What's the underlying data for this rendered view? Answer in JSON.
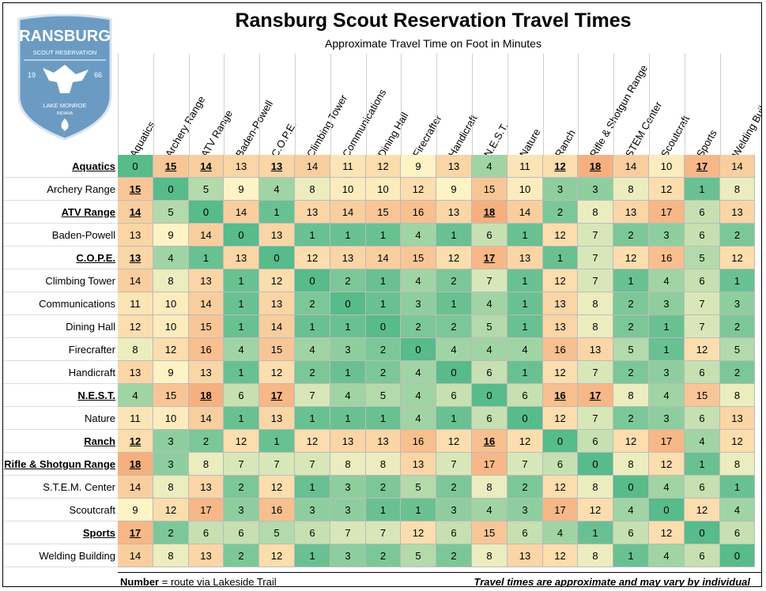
{
  "logo": {
    "name": "RANSBURG",
    "sub": "SCOUT RESERVATION",
    "year_left": "19",
    "year_right": "66",
    "place": "LAKE MONROE",
    "state": "INDIANA"
  },
  "title": "Ransburg Scout Reservation Travel Times",
  "subtitle": "Approximate Travel Time on Foot in Minutes",
  "columns": [
    "Aquatics",
    "Archery Range",
    "ATV Range",
    "Baden-Powell",
    "C.O.P.E.",
    "Climbing Tower",
    "Communications",
    "Dining Hall",
    "Firecrafter",
    "Handicraft",
    "N.E.S.T.",
    "Nature",
    "Ranch",
    "Rifle & Shotgun Range",
    "STEM Center",
    "Scoutcraft",
    "Sports",
    "Welding Building"
  ],
  "rows": [
    {
      "label": "Aquatics",
      "values": [
        0,
        15,
        14,
        13,
        13,
        14,
        11,
        12,
        9,
        13,
        4,
        11,
        12,
        18,
        14,
        10,
        17,
        14
      ]
    },
    {
      "label": "Archery Range",
      "values": [
        15,
        0,
        5,
        9,
        4,
        8,
        10,
        10,
        12,
        9,
        15,
        10,
        3,
        3,
        8,
        12,
        1,
        8
      ]
    },
    {
      "label": "ATV Range",
      "values": [
        14,
        5,
        0,
        14,
        1,
        13,
        14,
        15,
        16,
        13,
        18,
        14,
        2,
        8,
        13,
        17,
        6,
        13
      ]
    },
    {
      "label": "Baden-Powell",
      "values": [
        13,
        9,
        14,
        0,
        13,
        1,
        1,
        1,
        4,
        1,
        6,
        1,
        12,
        7,
        2,
        3,
        6,
        2
      ]
    },
    {
      "label": "C.O.P.E.",
      "values": [
        13,
        4,
        1,
        13,
        0,
        12,
        13,
        14,
        15,
        12,
        17,
        13,
        1,
        7,
        12,
        16,
        5,
        12
      ]
    },
    {
      "label": "Climbing Tower",
      "values": [
        14,
        8,
        13,
        1,
        12,
        0,
        2,
        1,
        4,
        2,
        7,
        1,
        12,
        7,
        1,
        4,
        6,
        1
      ]
    },
    {
      "label": "Communications",
      "values": [
        11,
        10,
        14,
        1,
        13,
        2,
        0,
        1,
        3,
        1,
        4,
        1,
        13,
        8,
        2,
        3,
        7,
        3
      ]
    },
    {
      "label": "Dining Hall",
      "values": [
        12,
        10,
        15,
        1,
        14,
        1,
        1,
        0,
        2,
        2,
        5,
        1,
        13,
        8,
        2,
        1,
        7,
        2
      ]
    },
    {
      "label": "Firecrafter",
      "values": [
        8,
        12,
        16,
        4,
        15,
        4,
        3,
        2,
        0,
        4,
        4,
        4,
        16,
        13,
        5,
        1,
        12,
        5
      ]
    },
    {
      "label": "Handicraft",
      "values": [
        13,
        9,
        13,
        1,
        12,
        2,
        1,
        2,
        4,
        0,
        6,
        1,
        12,
        7,
        2,
        3,
        6,
        2
      ]
    },
    {
      "label": "N.E.S.T.",
      "values": [
        4,
        15,
        18,
        6,
        17,
        7,
        4,
        5,
        4,
        6,
        0,
        6,
        16,
        17,
        8,
        4,
        15,
        8
      ]
    },
    {
      "label": "Nature",
      "values": [
        11,
        10,
        14,
        1,
        13,
        1,
        1,
        1,
        4,
        1,
        6,
        0,
        12,
        7,
        2,
        3,
        6,
        13
      ]
    },
    {
      "label": "Ranch",
      "values": [
        12,
        3,
        2,
        12,
        1,
        12,
        13,
        13,
        16,
        12,
        16,
        12,
        0,
        6,
        12,
        17,
        4,
        12
      ]
    },
    {
      "label": "Rifle & Shotgun Range",
      "values": [
        18,
        3,
        8,
        7,
        7,
        7,
        8,
        8,
        13,
        7,
        17,
        7,
        6,
        0,
        8,
        12,
        1,
        8
      ]
    },
    {
      "label": "S.T.E.M. Center",
      "values": [
        14,
        8,
        13,
        2,
        12,
        1,
        3,
        2,
        5,
        2,
        8,
        2,
        12,
        8,
        0,
        4,
        6,
        1
      ]
    },
    {
      "label": "Scoutcraft",
      "values": [
        9,
        12,
        17,
        3,
        16,
        3,
        3,
        1,
        1,
        3,
        4,
        3,
        17,
        12,
        4,
        0,
        12,
        4
      ]
    },
    {
      "label": "Sports",
      "values": [
        17,
        2,
        6,
        6,
        5,
        6,
        7,
        7,
        12,
        6,
        15,
        6,
        4,
        1,
        6,
        12,
        0,
        6
      ]
    },
    {
      "label": "Welding Building",
      "values": [
        14,
        8,
        13,
        2,
        12,
        1,
        3,
        2,
        5,
        2,
        8,
        13,
        12,
        8,
        1,
        4,
        6,
        0
      ]
    }
  ],
  "lakeside_trail_cells": [
    [
      0,
      1
    ],
    [
      0,
      2
    ],
    [
      0,
      4
    ],
    [
      0,
      12
    ],
    [
      0,
      13
    ],
    [
      0,
      16
    ],
    [
      1,
      0
    ],
    [
      2,
      0
    ],
    [
      2,
      10
    ],
    [
      4,
      0
    ],
    [
      4,
      10
    ],
    [
      10,
      2
    ],
    [
      10,
      4
    ],
    [
      10,
      12
    ],
    [
      10,
      13
    ],
    [
      12,
      0
    ],
    [
      12,
      10
    ],
    [
      13,
      0
    ],
    [
      16,
      0
    ]
  ],
  "lakeside_trail_rows": [
    0,
    2,
    4,
    10,
    12,
    13,
    16
  ],
  "colors": {
    "low": "#57bb8a",
    "mid": "#fdf3c5",
    "high": "#f6b07f"
  },
  "footer": {
    "number_word": "Number",
    "legend": " = route via Lakeside Trail",
    "note": "Travel times are approximate and may vary by individual"
  }
}
